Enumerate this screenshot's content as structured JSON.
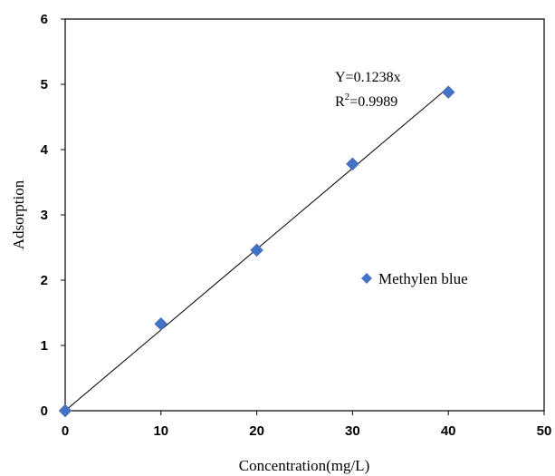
{
  "chart_data": {
    "type": "scatter",
    "title": "",
    "xlabel": "Concentration(mg/L)",
    "ylabel": "Adsorption",
    "xlim": [
      0,
      50
    ],
    "ylim": [
      0,
      6
    ],
    "x_ticks": [
      "0",
      "10",
      "20",
      "30",
      "40",
      "50"
    ],
    "y_ticks": [
      "0",
      "1",
      "2",
      "3",
      "4",
      "5",
      "6"
    ],
    "grid": false,
    "series": [
      {
        "name": "Methylen blue",
        "color": "#4472C4",
        "marker": "diamond",
        "x": [
          0,
          10,
          20,
          30,
          40
        ],
        "y": [
          0,
          1.33,
          2.46,
          3.78,
          4.88
        ]
      }
    ],
    "trendline": {
      "slope": 0.1238,
      "x_range": [
        0,
        40
      ],
      "equation": "Y=0.1238x",
      "r2_prefix": "R",
      "r2_sup": "2",
      "r2_value": "=0.9989"
    },
    "legend_position": "right"
  }
}
